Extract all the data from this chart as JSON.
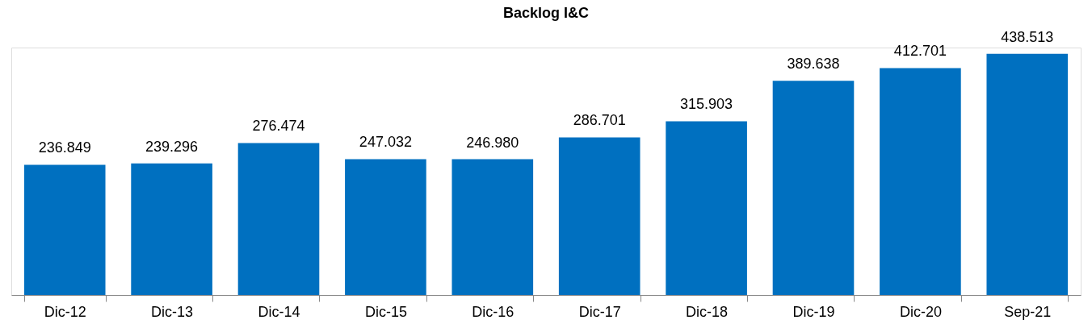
{
  "chart_data": {
    "type": "bar",
    "title": "Backlog I&C",
    "categories": [
      "Dic-12",
      "Dic-13",
      "Dic-14",
      "Dic-15",
      "Dic-16",
      "Dic-17",
      "Dic-18",
      "Dic-19",
      "Dic-20",
      "Sep-21"
    ],
    "values": [
      236849,
      239296,
      276474,
      247032,
      246980,
      286701,
      315903,
      389638,
      412701,
      438513
    ],
    "value_labels": [
      "236.849",
      "239.296",
      "276.474",
      "247.032",
      "246.980",
      "286.701",
      "315.903",
      "389.638",
      "412.701",
      "438.513"
    ],
    "color": "#0070c0"
  }
}
